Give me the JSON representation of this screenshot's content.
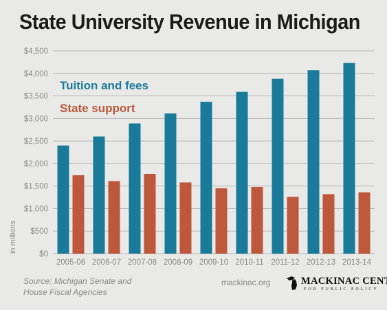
{
  "chart_data": {
    "type": "bar",
    "title": "State University Revenue in Michigan",
    "ylabel": "in millions",
    "xlabel": "",
    "categories": [
      "2005-06",
      "2006-07",
      "2007-08",
      "2008-09",
      "2009-10",
      "2010-11",
      "2011-12",
      "2012-13",
      "2013-14"
    ],
    "series": [
      {
        "name": "Tuition and fees",
        "color": "#1a7a9a",
        "values": [
          2400,
          2600,
          2890,
          3110,
          3370,
          3590,
          3880,
          4070,
          4230
        ]
      },
      {
        "name": "State support",
        "color": "#bd583d",
        "values": [
          1740,
          1610,
          1770,
          1580,
          1450,
          1480,
          1260,
          1320,
          1360
        ]
      }
    ],
    "ylim": [
      0,
      4500
    ],
    "yticks": [
      0,
      500,
      1000,
      1500,
      2000,
      2500,
      3000,
      3500,
      4000,
      4500
    ],
    "ytick_labels": [
      "$0",
      "$500",
      "$1,000",
      "$1,500",
      "$2,000",
      "$2,500",
      "$3,000",
      "$3,500",
      "$4,000",
      "$4,500"
    ],
    "grid": true,
    "legend_position": "top-left"
  },
  "footer": {
    "source_line1": "Source: Michigan Senate and",
    "source_line2": "House Fiscal Agencies",
    "website": "mackinac.org"
  },
  "logo": {
    "name": "MACKINAC CENTER",
    "subtitle": "FOR PUBLIC POLICY"
  }
}
